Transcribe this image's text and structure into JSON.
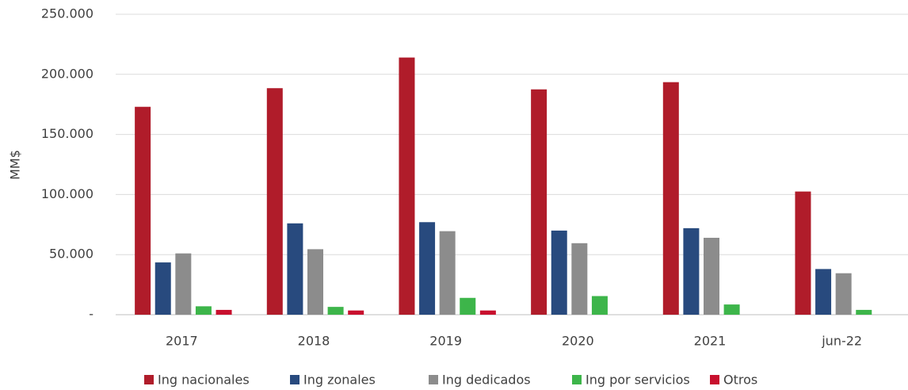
{
  "chart_data": {
    "type": "bar",
    "y_label": "MM$",
    "categories": [
      "2017",
      "2018",
      "2019",
      "2020",
      "2021",
      "jun-22"
    ],
    "series": [
      {
        "name": "Ing nacionales",
        "color": "#b01c2a",
        "values": [
          173000,
          188500,
          214000,
          187500,
          193500,
          102500
        ]
      },
      {
        "name": "Ing zonales",
        "color": "#284a7e",
        "values": [
          43500,
          76000,
          77000,
          70000,
          72000,
          38000
        ]
      },
      {
        "name": "Ing dedicados",
        "color": "#8c8c8c",
        "values": [
          51000,
          54500,
          69500,
          59500,
          64000,
          34500
        ]
      },
      {
        "name": "Ing por servicios",
        "color": "#3db54a",
        "values": [
          7000,
          6500,
          14000,
          15500,
          8500,
          4000
        ]
      },
      {
        "name": "Otros",
        "color": "#c8102e",
        "values": [
          4000,
          3500,
          3500,
          0,
          0,
          0
        ]
      }
    ],
    "ylim": [
      0,
      250000
    ],
    "yticks": [
      {
        "value": 0,
        "label": "-"
      },
      {
        "value": 50000,
        "label": "50.000"
      },
      {
        "value": 100000,
        "label": "100.000"
      },
      {
        "value": 150000,
        "label": "150.000"
      },
      {
        "value": 200000,
        "label": "200.000"
      },
      {
        "value": 250000,
        "label": "250.000"
      }
    ],
    "grid": true,
    "legend": "bottom"
  }
}
